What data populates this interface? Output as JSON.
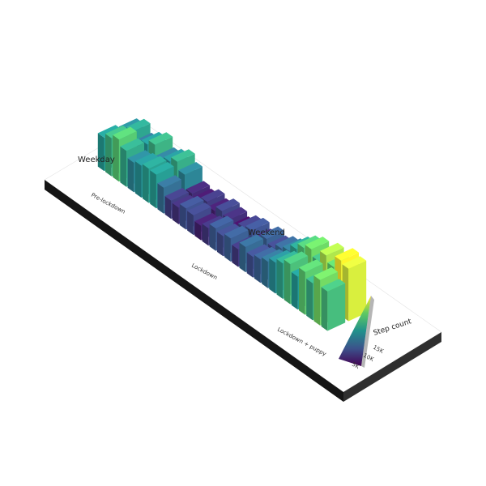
{
  "chart_data": {
    "type": "3d-bar-heatmap",
    "title": "",
    "row_labels": [
      "Weekday",
      "Weekend"
    ],
    "phase_labels": [
      "Pre-lockdown",
      "Lockdown",
      "Lockdown + puppy"
    ],
    "phase_week_counts": [
      9,
      14,
      8
    ],
    "legend": {
      "title": "Step count",
      "ticks": [
        "5K",
        "10K",
        "15K"
      ],
      "colors": [
        "#440154",
        "#3b528b",
        "#21918c",
        "#5ec962",
        "#fde725"
      ]
    },
    "series": [
      {
        "name": "Weekday",
        "values": [
          9800,
          11200,
          12400,
          10600,
          8700,
          9400,
          10100,
          9900,
          7600,
          5400,
          4900,
          6200,
          5800,
          4300,
          5100,
          6600,
          5900,
          6800,
          5200,
          7400,
          6100,
          6900,
          7800,
          9100,
          10400,
          11800,
          9700,
          12600,
          10900,
          13400,
          11600
        ]
      },
      {
        "name": "Weekend",
        "values": [
          8900,
          10300,
          7800,
          9600,
          11100,
          8200,
          9300,
          10800,
          8600,
          4600,
          3900,
          5300,
          4200,
          5700,
          4800,
          3600,
          5500,
          6300,
          4700,
          6900,
          5800,
          7200,
          8100,
          10200,
          12100,
          13300,
          11400,
          14600,
          12800,
          16200,
          15400
        ]
      }
    ]
  }
}
